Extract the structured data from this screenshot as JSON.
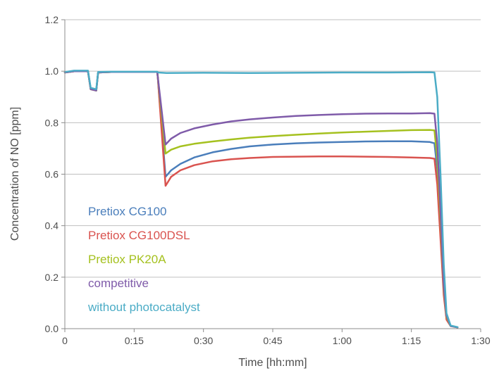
{
  "chart_data": {
    "type": "line",
    "xlabel": "Time [hh:mm]",
    "ylabel": "Concentration of NO [ppm]",
    "xlim": [
      0,
      90
    ],
    "ylim": [
      0,
      1.2
    ],
    "x_ticks": [
      {
        "value": 0,
        "label": "0"
      },
      {
        "value": 15,
        "label": "0:15"
      },
      {
        "value": 30,
        "label": "0:30"
      },
      {
        "value": 45,
        "label": "0:45"
      },
      {
        "value": 60,
        "label": "1:00"
      },
      {
        "value": 75,
        "label": "1:15"
      },
      {
        "value": 90,
        "label": "1:30"
      }
    ],
    "y_ticks": [
      {
        "value": 0,
        "label": "0.0"
      },
      {
        "value": 0.2,
        "label": "0.2"
      },
      {
        "value": 0.4,
        "label": "0.4"
      },
      {
        "value": 0.6,
        "label": "0.6"
      },
      {
        "value": 0.8,
        "label": "0.8"
      },
      {
        "value": 1.0,
        "label": "1.0"
      },
      {
        "value": 1.2,
        "label": "1.2"
      }
    ],
    "grid": "horizontal",
    "legend_placement": "bottom-left",
    "series": [
      {
        "name": "Pretiox CG100",
        "color": "#4a7ebb",
        "points": [
          [
            0,
            0.995
          ],
          [
            2,
            1.0
          ],
          [
            5,
            1.0
          ],
          [
            5.6,
            0.93
          ],
          [
            6.8,
            0.925
          ],
          [
            7.2,
            0.995
          ],
          [
            10,
            0.997
          ],
          [
            20,
            0.997
          ],
          [
            20.1,
            0.98
          ],
          [
            21.8,
            0.59
          ],
          [
            23,
            0.615
          ],
          [
            25,
            0.64
          ],
          [
            28,
            0.665
          ],
          [
            32,
            0.685
          ],
          [
            36,
            0.698
          ],
          [
            40,
            0.708
          ],
          [
            45,
            0.715
          ],
          [
            50,
            0.72
          ],
          [
            55,
            0.723
          ],
          [
            60,
            0.725
          ],
          [
            65,
            0.727
          ],
          [
            70,
            0.728
          ],
          [
            75,
            0.728
          ],
          [
            79,
            0.725
          ],
          [
            80,
            0.72
          ],
          [
            80.6,
            0.62
          ],
          [
            81.3,
            0.4
          ],
          [
            82,
            0.15
          ],
          [
            82.6,
            0.04
          ],
          [
            83.5,
            0.01
          ],
          [
            85,
            0.005
          ]
        ]
      },
      {
        "name": "Pretiox CG100DSL",
        "color": "#d9534f",
        "points": [
          [
            0,
            0.995
          ],
          [
            2,
            1.0
          ],
          [
            5,
            1.0
          ],
          [
            5.6,
            0.93
          ],
          [
            6.8,
            0.925
          ],
          [
            7.2,
            0.995
          ],
          [
            10,
            0.997
          ],
          [
            20,
            0.997
          ],
          [
            20.1,
            0.98
          ],
          [
            21.8,
            0.555
          ],
          [
            23,
            0.59
          ],
          [
            25,
            0.615
          ],
          [
            28,
            0.635
          ],
          [
            32,
            0.65
          ],
          [
            36,
            0.658
          ],
          [
            40,
            0.663
          ],
          [
            45,
            0.667
          ],
          [
            50,
            0.668
          ],
          [
            55,
            0.669
          ],
          [
            60,
            0.669
          ],
          [
            65,
            0.668
          ],
          [
            70,
            0.667
          ],
          [
            75,
            0.665
          ],
          [
            79,
            0.663
          ],
          [
            80,
            0.66
          ],
          [
            80.6,
            0.56
          ],
          [
            81.3,
            0.35
          ],
          [
            82,
            0.13
          ],
          [
            82.6,
            0.035
          ],
          [
            83.5,
            0.01
          ],
          [
            85,
            0.005
          ]
        ]
      },
      {
        "name": "Pretiox PK20A",
        "color": "#a5c11f",
        "points": [
          [
            0,
            0.995
          ],
          [
            2,
            1.0
          ],
          [
            5,
            1.0
          ],
          [
            5.6,
            0.93
          ],
          [
            6.8,
            0.925
          ],
          [
            7.2,
            0.995
          ],
          [
            10,
            0.997
          ],
          [
            20,
            0.997
          ],
          [
            20.1,
            0.98
          ],
          [
            21.8,
            0.68
          ],
          [
            23,
            0.695
          ],
          [
            25,
            0.708
          ],
          [
            28,
            0.718
          ],
          [
            32,
            0.727
          ],
          [
            36,
            0.735
          ],
          [
            40,
            0.742
          ],
          [
            45,
            0.748
          ],
          [
            50,
            0.753
          ],
          [
            55,
            0.758
          ],
          [
            60,
            0.762
          ],
          [
            65,
            0.765
          ],
          [
            70,
            0.768
          ],
          [
            75,
            0.771
          ],
          [
            79,
            0.772
          ],
          [
            80,
            0.77
          ],
          [
            80.6,
            0.66
          ],
          [
            81.3,
            0.43
          ],
          [
            82,
            0.16
          ],
          [
            82.6,
            0.045
          ],
          [
            83.5,
            0.01
          ],
          [
            85,
            0.005
          ]
        ]
      },
      {
        "name": "competitive",
        "color": "#7f5ba9",
        "points": [
          [
            0,
            0.995
          ],
          [
            2,
            1.0
          ],
          [
            5,
            1.0
          ],
          [
            5.6,
            0.93
          ],
          [
            6.8,
            0.925
          ],
          [
            7.2,
            0.995
          ],
          [
            10,
            0.997
          ],
          [
            20,
            0.997
          ],
          [
            20.1,
            0.98
          ],
          [
            21.8,
            0.715
          ],
          [
            23,
            0.738
          ],
          [
            25,
            0.76
          ],
          [
            28,
            0.778
          ],
          [
            32,
            0.793
          ],
          [
            36,
            0.805
          ],
          [
            40,
            0.813
          ],
          [
            45,
            0.82
          ],
          [
            50,
            0.826
          ],
          [
            55,
            0.83
          ],
          [
            60,
            0.833
          ],
          [
            65,
            0.835
          ],
          [
            70,
            0.836
          ],
          [
            75,
            0.836
          ],
          [
            79,
            0.837
          ],
          [
            80,
            0.835
          ],
          [
            80.6,
            0.72
          ],
          [
            81.3,
            0.46
          ],
          [
            82,
            0.17
          ],
          [
            82.6,
            0.05
          ],
          [
            83.5,
            0.01
          ],
          [
            85,
            0.005
          ]
        ]
      },
      {
        "name": "without photocatalyst",
        "color": "#4bacc6",
        "points": [
          [
            0,
            0.997
          ],
          [
            2,
            1.002
          ],
          [
            5,
            1.002
          ],
          [
            5.6,
            0.935
          ],
          [
            6.8,
            0.93
          ],
          [
            7.2,
            0.997
          ],
          [
            10,
            0.998
          ],
          [
            20,
            0.998
          ],
          [
            20.2,
            0.995
          ],
          [
            22,
            0.993
          ],
          [
            30,
            0.994
          ],
          [
            40,
            0.993
          ],
          [
            50,
            0.994
          ],
          [
            60,
            0.995
          ],
          [
            70,
            0.995
          ],
          [
            79,
            0.996
          ],
          [
            80,
            0.995
          ],
          [
            80.6,
            0.9
          ],
          [
            81.3,
            0.6
          ],
          [
            82,
            0.25
          ],
          [
            82.6,
            0.06
          ],
          [
            83.5,
            0.012
          ],
          [
            85,
            0.006
          ]
        ]
      }
    ]
  }
}
